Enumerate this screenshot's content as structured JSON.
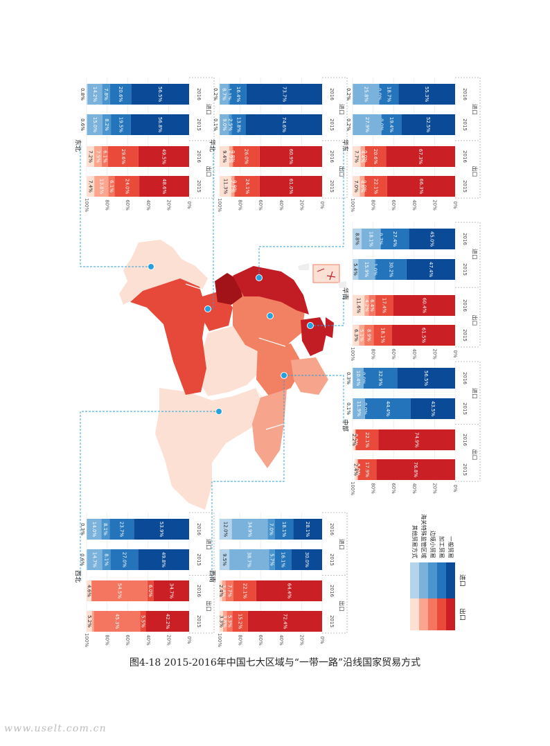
{
  "caption": "图4-18   2015-2016年中国七大区域与“一带一路”沿线国家贸易方式",
  "watermark": "www.uselt.com.cn",
  "palette": {
    "export": [
      "#ca1f25",
      "#ea4a3a",
      "#f57660",
      "#fba58f",
      "#fde0d2"
    ],
    "import": [
      "#0b4a97",
      "#2474bc",
      "#4a95cd",
      "#7bb2dc",
      "#b5d4ec"
    ],
    "region_colors": [
      "#fce0d4",
      "#f6a48c",
      "#f28062",
      "#e6483a",
      "#c21d24",
      "#a11219"
    ],
    "marker": "#27a0dc",
    "leader": "#27a0dc"
  },
  "legend": {
    "categories": [
      "其他贸易方式",
      "海关特殊监管区域",
      "边境小贸易",
      "加工贸易",
      "一般贸易"
    ],
    "export_label": "出口",
    "import_label": "进口"
  },
  "chart_data": [
    {
      "type": "bar",
      "stacked": "percent",
      "region": "东北",
      "categories": [
        "2015 出口",
        "2016 出口",
        "2015 进口",
        "2016 进口"
      ],
      "series": [
        {
          "name": "一般贸易",
          "values": [
            48.6,
            49.5,
            56.8,
            56.5
          ]
        },
        {
          "name": "加工贸易",
          "values": [
            24.0,
            29.6,
            19.5,
            20.6
          ]
        },
        {
          "name": "边境小贸易",
          "values": [
            6.1,
            6.1,
            8.2,
            7.8
          ]
        },
        {
          "name": "海关特殊监管区域",
          "values": [
            13.8,
            7.5,
            15.0,
            14.2
          ]
        },
        {
          "name": "其他贸易方式",
          "values": [
            7.4,
            7.2,
            0.6,
            0.8
          ]
        }
      ],
      "labels": [
        [
          "48.6%",
          "24.0%",
          "6.1%",
          "13.8%",
          "7.4%"
        ],
        [
          "49.5%",
          "29.6%",
          "6.1%",
          "7.5%",
          "7.2%"
        ],
        [
          "56.8%",
          "19.5%",
          "8.2%",
          "15.0%",
          "0.6%"
        ],
        [
          "56.5%",
          "20.6%",
          "7.8%",
          "14.2%",
          "0.8%"
        ]
      ],
      "yticks": [
        "0%",
        "20%",
        "40%",
        "60%",
        "80%",
        "100%"
      ],
      "years": [
        "2015",
        "2016"
      ],
      "flow_labels": [
        "出口",
        "进口"
      ]
    },
    {
      "type": "bar",
      "stacked": "percent",
      "region": "华北",
      "categories": [
        "2015 出口",
        "2016 出口",
        "2015 进口",
        "2016 进口"
      ],
      "series": [
        {
          "name": "一般贸易",
          "values": [
            61.0,
            60.9,
            74.6,
            73.7
          ]
        },
        {
          "name": "加工贸易",
          "values": [
            24.1,
            26.0,
            13.8,
            16.4
          ]
        },
        {
          "name": "边境小贸易",
          "values": [
            0.9,
            0.8,
            2.5,
            1.1
          ]
        },
        {
          "name": "海关特殊监管区域",
          "values": [
            2.7,
            2.9,
            9.0,
            8.7
          ]
        },
        {
          "name": "其他贸易方式",
          "values": [
            11.3,
            9.4,
            0.1,
            0.2
          ]
        }
      ],
      "labels": [
        [
          "61.0%",
          "24.1%",
          "0.9%",
          "2.7%",
          "11.3%"
        ],
        [
          "60.9%",
          "26.0%",
          "0.8%",
          "2.9%",
          "9.4%"
        ],
        [
          "74.6%",
          "13.8%",
          "2.5%",
          "9.0%",
          "0.1%"
        ],
        [
          "73.7%",
          "16.4%",
          "1.1%",
          "8.7%",
          "0.2%"
        ]
      ],
      "yticks": [
        "0%",
        "20%",
        "40%",
        "60%",
        "80%",
        "100%"
      ],
      "years": [
        "2015",
        "2016"
      ],
      "flow_labels": [
        "出口",
        "进口"
      ]
    },
    {
      "type": "bar",
      "stacked": "percent",
      "region": "华东",
      "categories": [
        "2015 出口",
        "2016 出口",
        "2015 进口",
        "2016 进口"
      ],
      "series": [
        {
          "name": "一般贸易",
          "values": [
            66.3,
            67.3,
            52.5,
            55.3
          ]
        },
        {
          "name": "加工贸易",
          "values": [
            22.1,
            20.6,
            19.4,
            18.7
          ]
        },
        {
          "name": "边境小贸易",
          "values": [
            0.0,
            0.0,
            0.0,
            0.0
          ]
        },
        {
          "name": "海关特殊监管区域",
          "values": [
            4.6,
            4.4,
            27.9,
            25.8
          ]
        },
        {
          "name": "其他贸易方式",
          "values": [
            7.0,
            7.7,
            0.2,
            0.2
          ]
        }
      ],
      "labels": [
        [
          "66.3%",
          "22.1%",
          "0.0%",
          "4.6%",
          "7.0%"
        ],
        [
          "67.3%",
          "20.6%",
          "0.0%",
          "4.4%",
          "7.7%"
        ],
        [
          "52.5%",
          "19.4%",
          "0.0%",
          "27.9%",
          "0.2%"
        ],
        [
          "55.3%",
          "18.7%",
          "0.0%",
          "25.8%",
          "0.2%"
        ]
      ],
      "yticks": [
        "0%",
        "20%",
        "40%",
        "60%",
        "80%",
        "100%"
      ],
      "years": [
        "2015",
        "2016"
      ],
      "flow_labels": [
        "出口",
        "进口"
      ]
    },
    {
      "type": "bar",
      "stacked": "percent",
      "region": "华南",
      "categories": [
        "2015 出口",
        "2016 出口",
        "2015 进口",
        "2016 进口"
      ],
      "series": [
        {
          "name": "一般贸易",
          "values": [
            61.5,
            60.4,
            47.4,
            45.0
          ]
        },
        {
          "name": "加工贸易",
          "values": [
            18.1,
            17.4,
            30.2,
            27.4
          ]
        },
        {
          "name": "边境小贸易",
          "values": [
            8.9,
            6.4,
            1.0,
            0.7
          ]
        },
        {
          "name": "海关特殊监管区域",
          "values": [
            5.1,
            4.2,
            15.9,
            18.1
          ]
        },
        {
          "name": "其他贸易方式",
          "values": [
            6.3,
            11.6,
            5.4,
            8.8
          ]
        }
      ],
      "labels": [
        [
          "61.5%",
          "18.1%",
          "8.9%",
          "5.1%",
          "6.3%"
        ],
        [
          "60.4%",
          "17.4%",
          "6.4%",
          "4.2%",
          "11.6%"
        ],
        [
          "47.4%",
          "30.2%",
          "1.0%",
          "15.9%",
          "5.4%"
        ],
        [
          "45.0%",
          "27.4%",
          "0.7%",
          "18.1%",
          "8.8%"
        ]
      ],
      "yticks": [
        "0%",
        "20%",
        "40%",
        "60%",
        "80%",
        "100%"
      ],
      "years": [
        "2015",
        "2016"
      ],
      "flow_labels": [
        "出口",
        "进口"
      ]
    },
    {
      "type": "bar",
      "stacked": "percent",
      "region": "中部",
      "categories": [
        "2015 出口",
        "2016 出口",
        "2015 进口",
        "2016 进口"
      ],
      "series": [
        {
          "name": "一般贸易",
          "values": [
            76.8,
            74.9,
            43.5,
            56.5
          ]
        },
        {
          "name": "加工贸易",
          "values": [
            17.9,
            22.1,
            44.4,
            32.9
          ]
        },
        {
          "name": "边境小贸易",
          "values": [
            0.0,
            0.0,
            0.0,
            0.0
          ]
        },
        {
          "name": "海关特殊监管区域",
          "values": [
            1.2,
            0.7,
            11.9,
            10.4
          ]
        },
        {
          "name": "其他贸易方式",
          "values": [
            2.4,
            2.2,
            0.1,
            0.3
          ]
        }
      ],
      "labels": [
        [
          "76.8%",
          "17.9%",
          "0.0%",
          "1.2%",
          "2.4%"
        ],
        [
          "74.9%",
          "22.1%",
          "0.0%",
          "0.7%",
          "2.2%"
        ],
        [
          "43.5%",
          "44.4%",
          "0.0%",
          "11.9%",
          "0.1%"
        ],
        [
          "56.5%",
          "32.9%",
          "0.0%",
          "10.4%",
          "0.3%"
        ]
      ],
      "yticks": [
        "0%",
        "20%",
        "40%",
        "60%",
        "80%",
        "100%"
      ],
      "years": [
        "2015",
        "2016"
      ],
      "flow_labels": [
        "出口",
        "进口"
      ]
    },
    {
      "type": "bar",
      "stacked": "percent",
      "region": "西北",
      "categories": [
        "2015 出口",
        "2016 出口",
        "2015 进口",
        "2016 进口"
      ],
      "series": [
        {
          "name": "一般贸易",
          "values": [
            42.2,
            34.7,
            49.8,
            53.9
          ]
        },
        {
          "name": "加工贸易",
          "values": [
            5.5,
            6.0,
            27.0,
            23.7
          ]
        },
        {
          "name": "边境小贸易",
          "values": [
            45.3,
            54.5,
            8.1,
            8.1
          ]
        },
        {
          "name": "海关特殊监管区域",
          "values": [
            1.8,
            0.2,
            14.7,
            14.0
          ]
        },
        {
          "name": "其他贸易方式",
          "values": [
            5.2,
            4.6,
            0.6,
            0.3
          ]
        }
      ],
      "labels": [
        [
          "42.2%",
          "5.5%",
          "45.3%",
          "",
          "5.2%"
        ],
        [
          "34.7%",
          "6.0%",
          "54.5%",
          "",
          "4.6%"
        ],
        [
          "49.8%",
          "27.0%",
          "8.1%",
          "14.7%",
          "0.6%"
        ],
        [
          "53.9%",
          "23.7%",
          "8.1%",
          "14.0%",
          "0.3%"
        ]
      ],
      "yticks": [
        "0%",
        "20%",
        "40%",
        "60%",
        "80%",
        "100%"
      ],
      "years": [
        "2015",
        "2016"
      ],
      "flow_labels": [
        "出口",
        "进口"
      ]
    },
    {
      "type": "bar",
      "stacked": "percent",
      "region": "西南",
      "categories": [
        "2015 出口",
        "2016 出口",
        "2015 进口",
        "2016 进口"
      ],
      "series": [
        {
          "name": "一般贸易",
          "values": [
            72.4,
            64.4,
            30.0,
            28.1
          ]
        },
        {
          "name": "加工贸易",
          "values": [
            15.2,
            22.1,
            16.1,
            18.1
          ]
        },
        {
          "name": "边境小贸易",
          "values": [
            5.3,
            7.7,
            5.7,
            7.0
          ]
        },
        {
          "name": "海关特殊监管区域",
          "values": [
            3.8,
            3.4,
            38.7,
            34.9
          ]
        },
        {
          "name": "其他贸易方式",
          "values": [
            3.3,
            2.4,
            9.5,
            12.0
          ]
        }
      ],
      "labels": [
        [
          "72.4%",
          "15.2%",
          "5.3%",
          "3.8%",
          "3.3%"
        ],
        [
          "64.4%",
          "22.1%",
          "7.7%",
          "3.4%",
          "2.4%"
        ],
        [
          "30.0%",
          "16.1%",
          "5.7%",
          "38.7%",
          "9.5%"
        ],
        [
          "28.1%",
          "18.1%",
          "7.0%",
          "34.9%",
          "12.0%"
        ]
      ],
      "yticks": [
        "0%",
        "20%",
        "40%",
        "60%",
        "80%",
        "100%"
      ],
      "years": [
        "2015",
        "2016"
      ],
      "flow_labels": [
        "出口",
        "进口"
      ]
    }
  ]
}
